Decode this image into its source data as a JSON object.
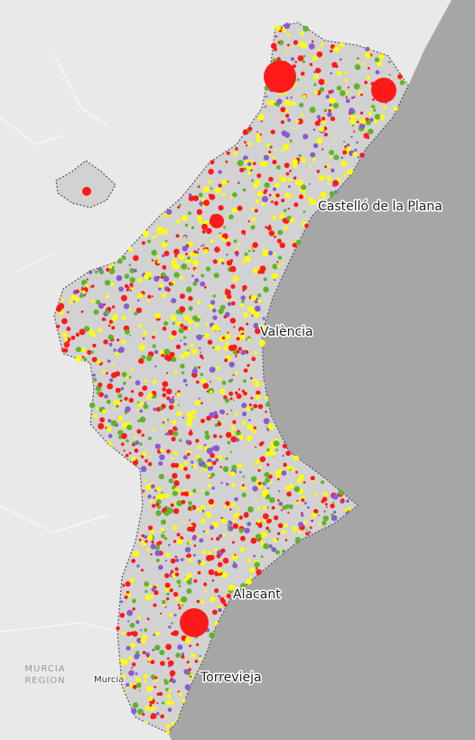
{
  "labels": {
    "castello": "Castelló de la Plana",
    "valencia": "València",
    "alacant": "Alacant",
    "torrevieja": "Torrevieja",
    "murcia": "Murcia",
    "murcia_region": [
      "MURCIA",
      "REGION"
    ]
  }
}
